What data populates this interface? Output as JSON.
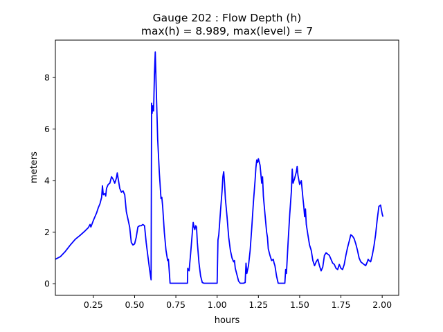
{
  "chart_data": {
    "type": "line",
    "title_line1": "Gauge 202 : Flow Depth (h)",
    "title_line2": "max(h) =   8.989,    max(level) = 7",
    "xlabel": "hours",
    "ylabel": "meters",
    "xlim": [
      0.02,
      2.1
    ],
    "ylim": [
      -0.45,
      9.45
    ],
    "xticks": [
      0.25,
      0.5,
      0.75,
      1.0,
      1.25,
      1.5,
      1.75,
      2.0
    ],
    "xtick_labels": [
      "0.25",
      "0.50",
      "0.75",
      "1.00",
      "1.25",
      "1.50",
      "1.75",
      "2.00"
    ],
    "yticks": [
      0,
      2,
      4,
      6,
      8
    ],
    "ytick_labels": [
      "0",
      "2",
      "4",
      "6",
      "8"
    ],
    "grid": false,
    "line_color": "#0000ff",
    "series": [
      {
        "points": [
          [
            0.02,
            0.95
          ],
          [
            0.05,
            1.05
          ],
          [
            0.08,
            1.25
          ],
          [
            0.11,
            1.5
          ],
          [
            0.14,
            1.72
          ],
          [
            0.17,
            1.88
          ],
          [
            0.2,
            2.05
          ],
          [
            0.22,
            2.18
          ],
          [
            0.23,
            2.3
          ],
          [
            0.235,
            2.2
          ],
          [
            0.25,
            2.45
          ],
          [
            0.27,
            2.75
          ],
          [
            0.28,
            2.95
          ],
          [
            0.29,
            3.1
          ],
          [
            0.3,
            3.35
          ],
          [
            0.305,
            3.8
          ],
          [
            0.31,
            3.45
          ],
          [
            0.32,
            3.5
          ],
          [
            0.325,
            3.4
          ],
          [
            0.33,
            3.7
          ],
          [
            0.34,
            3.85
          ],
          [
            0.35,
            3.9
          ],
          [
            0.36,
            4.15
          ],
          [
            0.37,
            4.05
          ],
          [
            0.38,
            3.9
          ],
          [
            0.39,
            4.1
          ],
          [
            0.395,
            4.3
          ],
          [
            0.4,
            4.1
          ],
          [
            0.41,
            3.7
          ],
          [
            0.42,
            3.55
          ],
          [
            0.43,
            3.6
          ],
          [
            0.44,
            3.45
          ],
          [
            0.45,
            2.8
          ],
          [
            0.46,
            2.5
          ],
          [
            0.47,
            2.2
          ],
          [
            0.48,
            1.6
          ],
          [
            0.49,
            1.5
          ],
          [
            0.5,
            1.55
          ],
          [
            0.51,
            1.8
          ],
          [
            0.52,
            2.2
          ],
          [
            0.53,
            2.25
          ],
          [
            0.54,
            2.25
          ],
          [
            0.55,
            2.3
          ],
          [
            0.56,
            2.25
          ],
          [
            0.57,
            1.6
          ],
          [
            0.58,
            1.1
          ],
          [
            0.59,
            0.6
          ],
          [
            0.6,
            0.15
          ],
          [
            0.603,
            7.0
          ],
          [
            0.606,
            6.6
          ],
          [
            0.61,
            6.9
          ],
          [
            0.615,
            6.7
          ],
          [
            0.62,
            8.1
          ],
          [
            0.625,
            8.989
          ],
          [
            0.63,
            7.8
          ],
          [
            0.64,
            5.6
          ],
          [
            0.65,
            4.3
          ],
          [
            0.66,
            3.3
          ],
          [
            0.665,
            3.35
          ],
          [
            0.67,
            3.0
          ],
          [
            0.68,
            2.0
          ],
          [
            0.69,
            1.3
          ],
          [
            0.7,
            0.9
          ],
          [
            0.705,
            0.95
          ],
          [
            0.71,
            0.5
          ],
          [
            0.715,
            0.02
          ],
          [
            0.82,
            0.02
          ],
          [
            0.822,
            0.6
          ],
          [
            0.83,
            0.5
          ],
          [
            0.84,
            1.2
          ],
          [
            0.85,
            2.0
          ],
          [
            0.855,
            2.38
          ],
          [
            0.86,
            2.2
          ],
          [
            0.865,
            2.1
          ],
          [
            0.87,
            2.25
          ],
          [
            0.875,
            2.2
          ],
          [
            0.88,
            1.6
          ],
          [
            0.89,
            0.8
          ],
          [
            0.9,
            0.3
          ],
          [
            0.91,
            0.05
          ],
          [
            0.92,
            0.02
          ],
          [
            1.0,
            0.02
          ],
          [
            1.005,
            1.7
          ],
          [
            1.01,
            1.9
          ],
          [
            1.02,
            2.8
          ],
          [
            1.03,
            3.6
          ],
          [
            1.035,
            4.15
          ],
          [
            1.04,
            4.35
          ],
          [
            1.045,
            3.9
          ],
          [
            1.05,
            3.3
          ],
          [
            1.06,
            2.6
          ],
          [
            1.07,
            1.8
          ],
          [
            1.08,
            1.3
          ],
          [
            1.09,
            1.0
          ],
          [
            1.1,
            0.85
          ],
          [
            1.105,
            0.9
          ],
          [
            1.11,
            0.6
          ],
          [
            1.12,
            0.35
          ],
          [
            1.13,
            0.1
          ],
          [
            1.14,
            0.02
          ],
          [
            1.16,
            0.02
          ],
          [
            1.17,
            0.05
          ],
          [
            1.175,
            0.8
          ],
          [
            1.18,
            0.4
          ],
          [
            1.19,
            0.7
          ],
          [
            1.2,
            1.3
          ],
          [
            1.21,
            2.2
          ],
          [
            1.22,
            3.2
          ],
          [
            1.23,
            4.0
          ],
          [
            1.235,
            4.5
          ],
          [
            1.24,
            4.8
          ],
          [
            1.245,
            4.7
          ],
          [
            1.25,
            4.85
          ],
          [
            1.26,
            4.6
          ],
          [
            1.27,
            3.9
          ],
          [
            1.275,
            4.15
          ],
          [
            1.28,
            3.4
          ],
          [
            1.29,
            2.7
          ],
          [
            1.3,
            2.0
          ],
          [
            1.305,
            1.8
          ],
          [
            1.31,
            1.35
          ],
          [
            1.32,
            1.1
          ],
          [
            1.33,
            0.9
          ],
          [
            1.34,
            0.95
          ],
          [
            1.345,
            0.8
          ],
          [
            1.35,
            0.7
          ],
          [
            1.36,
            0.3
          ],
          [
            1.37,
            0.02
          ],
          [
            1.41,
            0.02
          ],
          [
            1.415,
            0.55
          ],
          [
            1.42,
            0.4
          ],
          [
            1.43,
            1.6
          ],
          [
            1.44,
            2.7
          ],
          [
            1.45,
            3.6
          ],
          [
            1.455,
            4.45
          ],
          [
            1.46,
            3.9
          ],
          [
            1.47,
            4.1
          ],
          [
            1.48,
            4.35
          ],
          [
            1.485,
            4.55
          ],
          [
            1.49,
            4.2
          ],
          [
            1.5,
            3.85
          ],
          [
            1.51,
            4.0
          ],
          [
            1.52,
            3.3
          ],
          [
            1.525,
            3.0
          ],
          [
            1.53,
            2.6
          ],
          [
            1.535,
            2.9
          ],
          [
            1.54,
            2.3
          ],
          [
            1.55,
            1.9
          ],
          [
            1.56,
            1.5
          ],
          [
            1.57,
            1.3
          ],
          [
            1.58,
            0.9
          ],
          [
            1.59,
            0.7
          ],
          [
            1.6,
            0.85
          ],
          [
            1.61,
            0.95
          ],
          [
            1.62,
            0.7
          ],
          [
            1.63,
            0.5
          ],
          [
            1.64,
            0.65
          ],
          [
            1.65,
            1.1
          ],
          [
            1.66,
            1.2
          ],
          [
            1.67,
            1.15
          ],
          [
            1.68,
            1.1
          ],
          [
            1.69,
            0.95
          ],
          [
            1.7,
            0.8
          ],
          [
            1.71,
            0.75
          ],
          [
            1.72,
            0.6
          ],
          [
            1.73,
            0.55
          ],
          [
            1.74,
            0.75
          ],
          [
            1.75,
            0.6
          ],
          [
            1.76,
            0.55
          ],
          [
            1.77,
            0.75
          ],
          [
            1.78,
            1.1
          ],
          [
            1.79,
            1.4
          ],
          [
            1.8,
            1.65
          ],
          [
            1.81,
            1.9
          ],
          [
            1.82,
            1.85
          ],
          [
            1.83,
            1.75
          ],
          [
            1.84,
            1.55
          ],
          [
            1.85,
            1.3
          ],
          [
            1.86,
            1.0
          ],
          [
            1.87,
            0.85
          ],
          [
            1.88,
            0.8
          ],
          [
            1.89,
            0.75
          ],
          [
            1.9,
            0.7
          ],
          [
            1.91,
            0.85
          ],
          [
            1.915,
            0.95
          ],
          [
            1.92,
            0.9
          ],
          [
            1.93,
            0.85
          ],
          [
            1.94,
            1.1
          ],
          [
            1.95,
            1.45
          ],
          [
            1.96,
            1.9
          ],
          [
            1.97,
            2.5
          ],
          [
            1.98,
            3.0
          ],
          [
            1.99,
            3.05
          ],
          [
            2.0,
            2.7
          ],
          [
            2.005,
            2.6
          ]
        ]
      }
    ]
  }
}
